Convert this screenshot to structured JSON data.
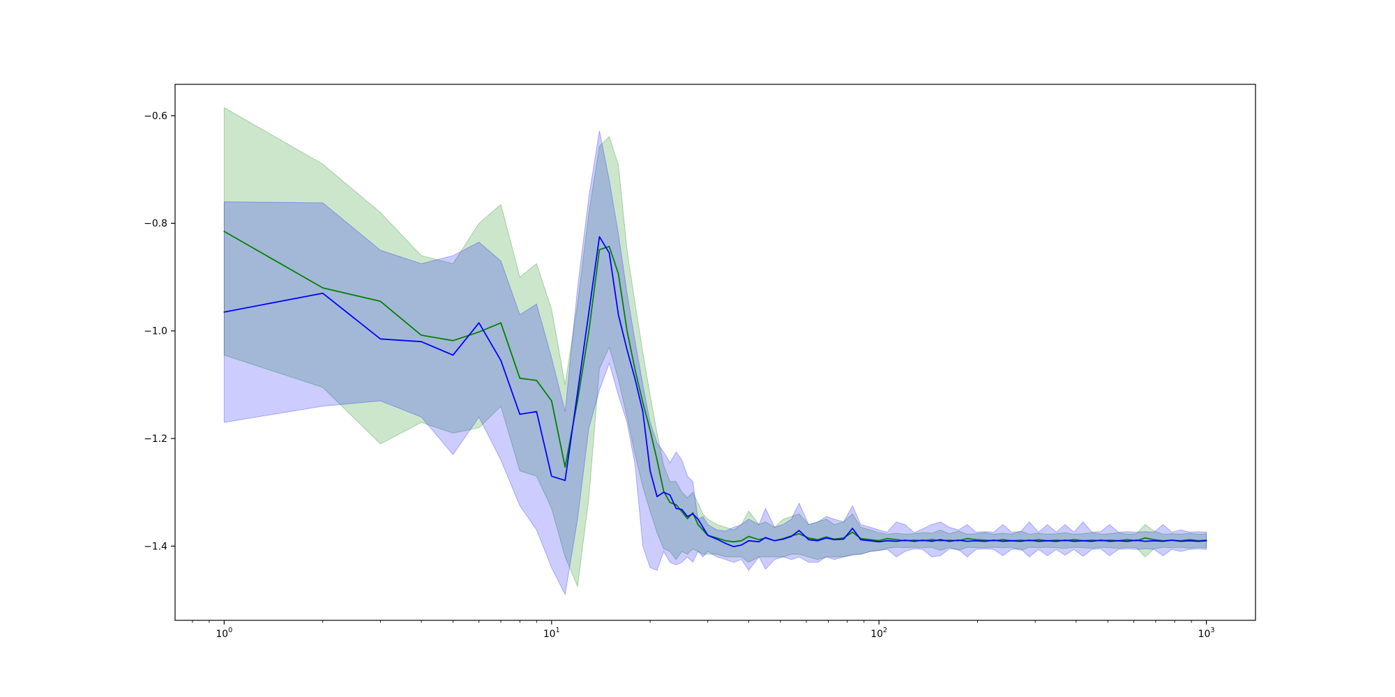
{
  "figure": {
    "background": "#ffffff",
    "frame_color": "#000000"
  },
  "chart_data": {
    "type": "line",
    "title": "",
    "xlabel": "",
    "ylabel": "",
    "x_scale": "log",
    "x_range": [
      0.708,
      1413
    ],
    "y_range": [
      -1.538,
      -0.542
    ],
    "grid": false,
    "legend": "none",
    "y_ticks": [
      {
        "v": -0.6,
        "label": "−0.6"
      },
      {
        "v": -0.8,
        "label": "−0.8"
      },
      {
        "v": -1.0,
        "label": "−1.0"
      },
      {
        "v": -1.2,
        "label": "−1.2"
      },
      {
        "v": -1.4,
        "label": "−1.4"
      }
    ],
    "x_ticks": [
      {
        "v": 1,
        "base": "10",
        "exp": "0"
      },
      {
        "v": 10,
        "base": "10",
        "exp": "1"
      },
      {
        "v": 100,
        "base": "10",
        "exp": "2"
      },
      {
        "v": 1000,
        "base": "10",
        "exp": "3"
      }
    ],
    "x": [
      1,
      2,
      3,
      4,
      5,
      6,
      7,
      8,
      9,
      10,
      11,
      12,
      13,
      14,
      15,
      16,
      17,
      18,
      19,
      20,
      21,
      22,
      23,
      24,
      25,
      26,
      27,
      28,
      29,
      30,
      32,
      34,
      36,
      38,
      40,
      43,
      45,
      48,
      51,
      54,
      57,
      61,
      65,
      69,
      73,
      78,
      83,
      88,
      94,
      100,
      106,
      113,
      120,
      128,
      136,
      145,
      154,
      164,
      175,
      186,
      198,
      211,
      224,
      239,
      254,
      271,
      288,
      307,
      327,
      348,
      370,
      394,
      420,
      447,
      476,
      506,
      539,
      574,
      611,
      650,
      692,
      737,
      784,
      835,
      889,
      946,
      1000
    ],
    "series": [
      {
        "name": "green-series",
        "color": "#008000",
        "band_fill": "rgba(0,128,0,0.20)",
        "band_edge": "rgba(0,128,0,0.30)",
        "mean": [
          -0.815,
          -0.92,
          -0.945,
          -1.008,
          -1.018,
          -1.002,
          -0.985,
          -1.088,
          -1.092,
          -1.13,
          -1.253,
          -1.13,
          -1.0,
          -0.849,
          -0.843,
          -0.894,
          -1.0,
          -1.073,
          -1.133,
          -1.185,
          -1.24,
          -1.298,
          -1.319,
          -1.323,
          -1.336,
          -1.349,
          -1.338,
          -1.36,
          -1.37,
          -1.38,
          -1.385,
          -1.39,
          -1.392,
          -1.39,
          -1.382,
          -1.388,
          -1.385,
          -1.39,
          -1.386,
          -1.381,
          -1.377,
          -1.385,
          -1.388,
          -1.383,
          -1.387,
          -1.385,
          -1.374,
          -1.386,
          -1.388,
          -1.39,
          -1.386,
          -1.388,
          -1.39,
          -1.389,
          -1.39,
          -1.388,
          -1.39,
          -1.389,
          -1.39,
          -1.386,
          -1.388,
          -1.389,
          -1.39,
          -1.388,
          -1.39,
          -1.389,
          -1.39,
          -1.388,
          -1.39,
          -1.389,
          -1.39,
          -1.388,
          -1.39,
          -1.389,
          -1.39,
          -1.389,
          -1.39,
          -1.388,
          -1.39,
          -1.385,
          -1.388,
          -1.39,
          -1.389,
          -1.39,
          -1.388,
          -1.39,
          -1.389
        ],
        "upper": [
          -0.585,
          -0.69,
          -0.78,
          -0.86,
          -0.875,
          -0.8,
          -0.765,
          -0.9,
          -0.875,
          -0.96,
          -1.1,
          -0.95,
          -0.78,
          -0.657,
          -0.639,
          -0.692,
          -0.85,
          -0.95,
          -1.04,
          -1.12,
          -1.19,
          -1.25,
          -1.28,
          -1.28,
          -1.3,
          -1.31,
          -1.3,
          -1.32,
          -1.34,
          -1.35,
          -1.36,
          -1.365,
          -1.37,
          -1.36,
          -1.335,
          -1.36,
          -1.355,
          -1.365,
          -1.35,
          -1.345,
          -1.34,
          -1.36,
          -1.355,
          -1.35,
          -1.36,
          -1.355,
          -1.34,
          -1.365,
          -1.37,
          -1.375,
          -1.378,
          -1.376,
          -1.378,
          -1.377,
          -1.375,
          -1.376,
          -1.37,
          -1.377,
          -1.372,
          -1.378,
          -1.377,
          -1.375,
          -1.378,
          -1.376,
          -1.378,
          -1.372,
          -1.378,
          -1.376,
          -1.378,
          -1.377,
          -1.375,
          -1.378,
          -1.377,
          -1.375,
          -1.378,
          -1.377,
          -1.375,
          -1.378,
          -1.377,
          -1.36,
          -1.372,
          -1.378,
          -1.377,
          -1.378,
          -1.376,
          -1.378,
          -1.377
        ],
        "lower": [
          -1.045,
          -1.105,
          -1.21,
          -1.17,
          -1.19,
          -1.18,
          -1.14,
          -1.26,
          -1.27,
          -1.33,
          -1.42,
          -1.475,
          -1.31,
          -1.07,
          -1.03,
          -1.09,
          -1.16,
          -1.23,
          -1.29,
          -1.335,
          -1.375,
          -1.405,
          -1.41,
          -1.425,
          -1.41,
          -1.415,
          -1.405,
          -1.41,
          -1.415,
          -1.415,
          -1.415,
          -1.42,
          -1.42,
          -1.42,
          -1.43,
          -1.42,
          -1.42,
          -1.42,
          -1.42,
          -1.415,
          -1.415,
          -1.42,
          -1.425,
          -1.42,
          -1.42,
          -1.42,
          -1.415,
          -1.415,
          -1.41,
          -1.408,
          -1.404,
          -1.402,
          -1.403,
          -1.402,
          -1.403,
          -1.402,
          -1.408,
          -1.402,
          -1.408,
          -1.402,
          -1.403,
          -1.403,
          -1.402,
          -1.403,
          -1.402,
          -1.408,
          -1.402,
          -1.403,
          -1.402,
          -1.403,
          -1.404,
          -1.402,
          -1.403,
          -1.404,
          -1.402,
          -1.403,
          -1.404,
          -1.402,
          -1.403,
          -1.42,
          -1.405,
          -1.402,
          -1.403,
          -1.402,
          -1.404,
          -1.402,
          -1.403
        ]
      },
      {
        "name": "blue-series",
        "color": "#0000ff",
        "band_fill": "rgba(0,0,255,0.20)",
        "band_edge": "rgba(0,0,255,0.28)",
        "mean": [
          -0.965,
          -0.93,
          -1.015,
          -1.02,
          -1.045,
          -0.985,
          -1.055,
          -1.155,
          -1.15,
          -1.27,
          -1.278,
          -1.115,
          -0.965,
          -0.825,
          -0.855,
          -0.97,
          -1.035,
          -1.09,
          -1.15,
          -1.26,
          -1.308,
          -1.3,
          -1.305,
          -1.33,
          -1.332,
          -1.345,
          -1.34,
          -1.35,
          -1.365,
          -1.38,
          -1.387,
          -1.395,
          -1.401,
          -1.398,
          -1.39,
          -1.392,
          -1.384,
          -1.39,
          -1.387,
          -1.382,
          -1.371,
          -1.388,
          -1.39,
          -1.385,
          -1.388,
          -1.387,
          -1.367,
          -1.388,
          -1.39,
          -1.392,
          -1.39,
          -1.391,
          -1.389,
          -1.391,
          -1.389,
          -1.391,
          -1.388,
          -1.391,
          -1.389,
          -1.391,
          -1.39,
          -1.391,
          -1.389,
          -1.391,
          -1.39,
          -1.391,
          -1.389,
          -1.391,
          -1.39,
          -1.391,
          -1.389,
          -1.391,
          -1.39,
          -1.391,
          -1.389,
          -1.391,
          -1.39,
          -1.391,
          -1.389,
          -1.391,
          -1.39,
          -1.391,
          -1.389,
          -1.391,
          -1.39,
          -1.391,
          -1.39
        ],
        "upper": [
          -0.76,
          -0.762,
          -0.85,
          -0.875,
          -0.86,
          -0.835,
          -0.87,
          -0.97,
          -0.95,
          -1.05,
          -1.15,
          -0.92,
          -0.75,
          -0.628,
          -0.72,
          -0.82,
          -0.93,
          -1.02,
          -1.1,
          -1.17,
          -1.208,
          -1.225,
          -1.245,
          -1.225,
          -1.24,
          -1.27,
          -1.28,
          -1.35,
          -1.345,
          -1.36,
          -1.37,
          -1.372,
          -1.365,
          -1.36,
          -1.35,
          -1.36,
          -1.33,
          -1.365,
          -1.36,
          -1.35,
          -1.32,
          -1.36,
          -1.355,
          -1.345,
          -1.35,
          -1.355,
          -1.325,
          -1.36,
          -1.365,
          -1.37,
          -1.374,
          -1.355,
          -1.36,
          -1.375,
          -1.368,
          -1.36,
          -1.355,
          -1.365,
          -1.37,
          -1.36,
          -1.374,
          -1.373,
          -1.374,
          -1.36,
          -1.374,
          -1.373,
          -1.355,
          -1.374,
          -1.36,
          -1.374,
          -1.36,
          -1.374,
          -1.355,
          -1.374,
          -1.373,
          -1.36,
          -1.374,
          -1.373,
          -1.374,
          -1.373,
          -1.374,
          -1.36,
          -1.374,
          -1.37,
          -1.374,
          -1.373,
          -1.374
        ],
        "lower": [
          -1.17,
          -1.14,
          -1.13,
          -1.16,
          -1.23,
          -1.16,
          -1.24,
          -1.325,
          -1.37,
          -1.44,
          -1.49,
          -1.35,
          -1.18,
          -1.11,
          -1.06,
          -1.12,
          -1.17,
          -1.25,
          -1.4,
          -1.44,
          -1.445,
          -1.41,
          -1.43,
          -1.435,
          -1.43,
          -1.42,
          -1.43,
          -1.41,
          -1.42,
          -1.41,
          -1.42,
          -1.425,
          -1.43,
          -1.425,
          -1.445,
          -1.42,
          -1.443,
          -1.425,
          -1.42,
          -1.425,
          -1.42,
          -1.43,
          -1.43,
          -1.42,
          -1.425,
          -1.42,
          -1.417,
          -1.415,
          -1.41,
          -1.408,
          -1.406,
          -1.42,
          -1.41,
          -1.405,
          -1.406,
          -1.42,
          -1.418,
          -1.405,
          -1.406,
          -1.42,
          -1.406,
          -1.405,
          -1.406,
          -1.418,
          -1.406,
          -1.405,
          -1.42,
          -1.406,
          -1.418,
          -1.406,
          -1.417,
          -1.406,
          -1.419,
          -1.406,
          -1.405,
          -1.418,
          -1.406,
          -1.405,
          -1.406,
          -1.405,
          -1.406,
          -1.418,
          -1.406,
          -1.41,
          -1.406,
          -1.405,
          -1.406
        ]
      }
    ]
  }
}
